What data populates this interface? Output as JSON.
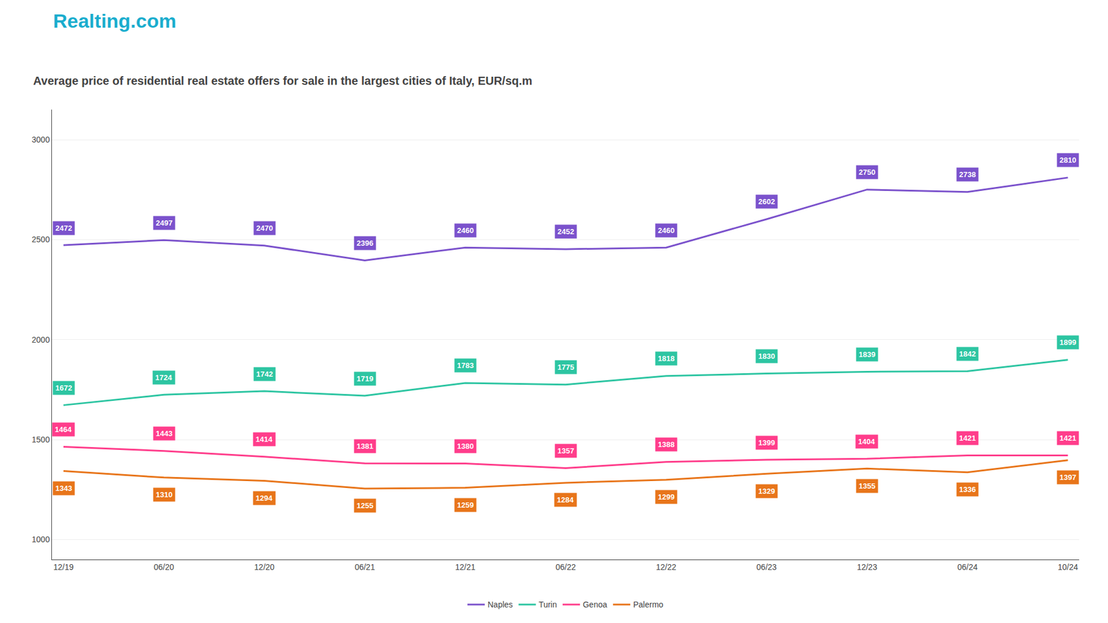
{
  "chart_data": {
    "type": "line",
    "title": "Average price of residential real estate offers for sale in the largest cities of Italy, EUR/sq.m",
    "annotations": [
      "Realting.com"
    ],
    "categories": [
      "12/19",
      "06/20",
      "12/20",
      "06/21",
      "12/21",
      "06/22",
      "12/22",
      "06/23",
      "12/23",
      "06/24",
      "10/24"
    ],
    "series": [
      {
        "name": "Naples",
        "color": "#7B52CC",
        "values": [
          2472,
          2497,
          2470,
          2396,
          2460,
          2452,
          2460,
          2602,
          2750,
          2738,
          2810
        ]
      },
      {
        "name": "Turin",
        "color": "#2DC5A2",
        "values": [
          1672,
          1724,
          1742,
          1719,
          1783,
          1775,
          1818,
          1830,
          1839,
          1842,
          1899
        ]
      },
      {
        "name": "Genoa",
        "color": "#FF3D8B",
        "values": [
          1464,
          1443,
          1414,
          1381,
          1380,
          1357,
          1388,
          1399,
          1404,
          1421,
          1421
        ]
      },
      {
        "name": "Palermo",
        "color": "#E8751A",
        "values": [
          1343,
          1310,
          1294,
          1255,
          1259,
          1284,
          1299,
          1329,
          1355,
          1336,
          1397
        ]
      }
    ],
    "ylim": [
      900,
      3150
    ],
    "yticks": [
      1000,
      1500,
      2000,
      2500,
      3000
    ],
    "grid": true,
    "data_labels": true,
    "legend": "bottom"
  }
}
